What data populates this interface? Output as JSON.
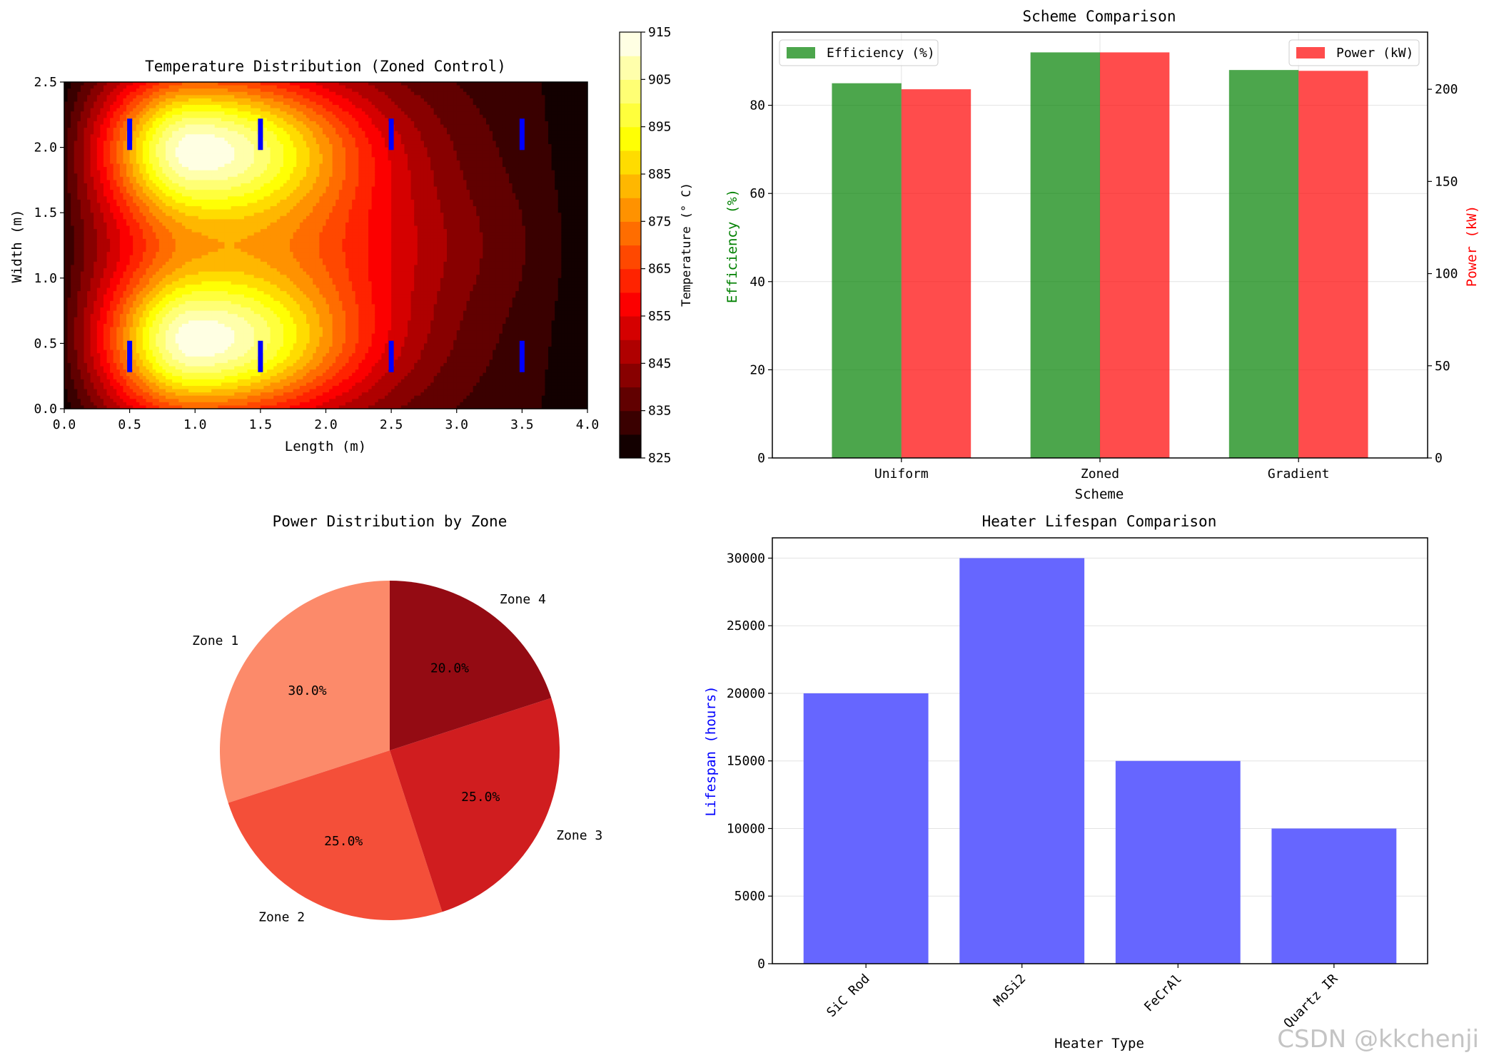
{
  "charts": [
    {
      "type": "heatmap",
      "title": "Temperature Distribution (Zoned Control)",
      "xlabel": "Length (m)",
      "ylabel": "Width (m)",
      "xlim": [
        0,
        4
      ],
      "ylim": [
        0,
        2.5
      ],
      "xticks": [
        "0.0",
        "0.5",
        "1.0",
        "1.5",
        "2.0",
        "2.5",
        "3.0",
        "3.5",
        "4.0"
      ],
      "yticks": [
        "0.0",
        "0.5",
        "1.0",
        "1.5",
        "2.0",
        "2.5"
      ],
      "field": {
        "description_of_model": "zoned heating, two hot bands",
        "hot_centers": [
          {
            "x": 1.0,
            "y": 0.5
          },
          {
            "x": 1.0,
            "y": 2.0
          }
        ],
        "peak_temperature": 913,
        "edge_temperature": 828
      },
      "colorbar": {
        "label": "Temperature (° C)",
        "range": [
          825,
          915
        ],
        "ticks": [
          "825",
          "835",
          "845",
          "855",
          "865",
          "875",
          "885",
          "895",
          "905",
          "915"
        ],
        "levels": 18
      },
      "heaters": [
        {
          "x": 0.5,
          "y": 2.1
        },
        {
          "x": 1.5,
          "y": 2.1
        },
        {
          "x": 2.5,
          "y": 2.1
        },
        {
          "x": 3.5,
          "y": 2.1
        },
        {
          "x": 0.5,
          "y": 0.4
        },
        {
          "x": 1.5,
          "y": 0.4
        },
        {
          "x": 2.5,
          "y": 0.4
        },
        {
          "x": 3.5,
          "y": 0.4
        }
      ],
      "heater_color": "#0000ff"
    },
    {
      "type": "bar",
      "title": "Scheme Comparison",
      "xlabel": "Scheme",
      "categories": [
        "Uniform",
        "Zoned",
        "Gradient"
      ],
      "series": [
        {
          "name": "Efficiency (%)",
          "values": [
            85,
            92,
            88
          ],
          "color": "#008000",
          "axis": "left"
        },
        {
          "name": "Power (kW)",
          "values": [
            200,
            220,
            210
          ],
          "color": "#ff0000",
          "axis": "right"
        }
      ],
      "ylabel_left": "Efficiency (%)",
      "ylabel_right": "Power (kW)",
      "ylim_left": [
        0,
        96.6
      ],
      "ylim_right": [
        0,
        231
      ],
      "yticks_left": [
        "0",
        "20",
        "40",
        "60",
        "80"
      ],
      "yticks_right": [
        "0",
        "50",
        "100",
        "150",
        "200"
      ],
      "legend_left": "top-left",
      "legend_right": "top-right",
      "grid": true
    },
    {
      "type": "pie",
      "title": "Power Distribution by Zone",
      "slices": [
        {
          "label": "Zone 1",
          "value": 30,
          "pct": "30.0%",
          "color": "#fc8a6a"
        },
        {
          "label": "Zone 2",
          "value": 25,
          "pct": "25.0%",
          "color": "#f44f39"
        },
        {
          "label": "Zone 3",
          "value": 25,
          "pct": "25.0%",
          "color": "#d01d1f"
        },
        {
          "label": "Zone 4",
          "value": 20,
          "pct": "20.0%",
          "color": "#940b13"
        }
      ],
      "startangle": 90
    },
    {
      "type": "bar",
      "title": "Heater Lifespan Comparison",
      "xlabel": "Heater Type",
      "ylabel": "Lifespan (hours)",
      "categories": [
        "SiC Rod",
        "MoSi2",
        "FeCrAl",
        "Quartz IR"
      ],
      "values": [
        20000,
        30000,
        15000,
        10000
      ],
      "color": "#6666ff",
      "ylim": [
        0,
        31500
      ],
      "yticks": [
        "0",
        "5000",
        "10000",
        "15000",
        "20000",
        "25000",
        "30000"
      ],
      "grid": true
    }
  ],
  "watermark": "CSDN @kkchenji"
}
